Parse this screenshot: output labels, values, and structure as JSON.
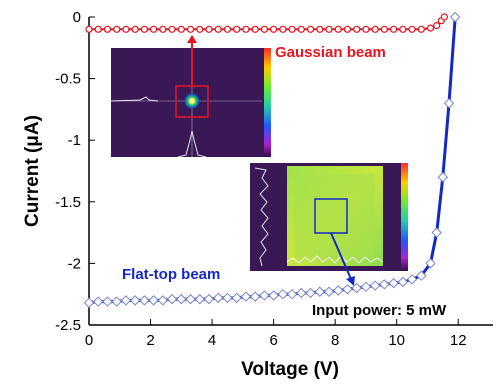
{
  "chart_data": {
    "type": "line",
    "xlabel": "Voltage (V)",
    "ylabel": "Current (μA)",
    "xlim": [
      0,
      13
    ],
    "ylim": [
      -2.5,
      0
    ],
    "xticks": [
      "0",
      "2",
      "4",
      "6",
      "8",
      "10",
      "12"
    ],
    "yticks": [
      "0",
      "-0.5",
      "-1",
      "-1.5",
      "-2",
      "-2.5"
    ],
    "grid": false,
    "series": [
      {
        "name": "Gaussian beam",
        "color": "#e8141e",
        "marker": "circle",
        "x": [
          0.0,
          0.3,
          0.6,
          0.9,
          1.2,
          1.5,
          1.8,
          2.1,
          2.4,
          2.7,
          3.0,
          3.3,
          3.6,
          3.9,
          4.2,
          4.5,
          4.8,
          5.1,
          5.4,
          5.7,
          6.0,
          6.3,
          6.6,
          6.9,
          7.2,
          7.5,
          7.8,
          8.1,
          8.4,
          8.7,
          9.0,
          9.3,
          9.6,
          9.9,
          10.2,
          10.5,
          10.8,
          11.1,
          11.3,
          11.45,
          11.55
        ],
        "y": [
          -0.1,
          -0.1,
          -0.1,
          -0.1,
          -0.1,
          -0.1,
          -0.1,
          -0.1,
          -0.1,
          -0.1,
          -0.1,
          -0.1,
          -0.1,
          -0.1,
          -0.1,
          -0.1,
          -0.1,
          -0.1,
          -0.1,
          -0.1,
          -0.1,
          -0.1,
          -0.1,
          -0.1,
          -0.1,
          -0.1,
          -0.1,
          -0.1,
          -0.1,
          -0.1,
          -0.1,
          -0.1,
          -0.1,
          -0.1,
          -0.1,
          -0.1,
          -0.1,
          -0.09,
          -0.07,
          -0.03,
          0.0
        ]
      },
      {
        "name": "Flat-top beam",
        "color": "#1428c8",
        "marker": "diamond",
        "x": [
          0.0,
          0.3,
          0.6,
          0.9,
          1.2,
          1.5,
          1.8,
          2.1,
          2.4,
          2.7,
          3.0,
          3.3,
          3.6,
          3.9,
          4.2,
          4.5,
          4.8,
          5.1,
          5.4,
          5.7,
          6.0,
          6.3,
          6.6,
          6.9,
          7.2,
          7.5,
          7.8,
          8.1,
          8.4,
          8.7,
          9.0,
          9.3,
          9.6,
          9.9,
          10.2,
          10.5,
          10.8,
          11.1,
          11.3,
          11.5,
          11.7,
          11.9
        ],
        "y": [
          -2.32,
          -2.31,
          -2.31,
          -2.31,
          -2.3,
          -2.3,
          -2.3,
          -2.3,
          -2.3,
          -2.29,
          -2.29,
          -2.29,
          -2.29,
          -2.29,
          -2.28,
          -2.28,
          -2.28,
          -2.27,
          -2.27,
          -2.26,
          -2.26,
          -2.25,
          -2.25,
          -2.24,
          -2.24,
          -2.23,
          -2.23,
          -2.22,
          -2.21,
          -2.2,
          -2.19,
          -2.18,
          -2.17,
          -2.16,
          -2.15,
          -2.13,
          -2.1,
          -2.0,
          -1.75,
          -1.3,
          -0.7,
          0.0
        ]
      }
    ],
    "annotations": [
      "Gaussian beam",
      "Flat-top beam",
      "Input power: 5 mW"
    ]
  },
  "annotation_colors": {
    "gaussian": "#e8141e",
    "flattop": "#1428c8",
    "power": "#000000"
  }
}
